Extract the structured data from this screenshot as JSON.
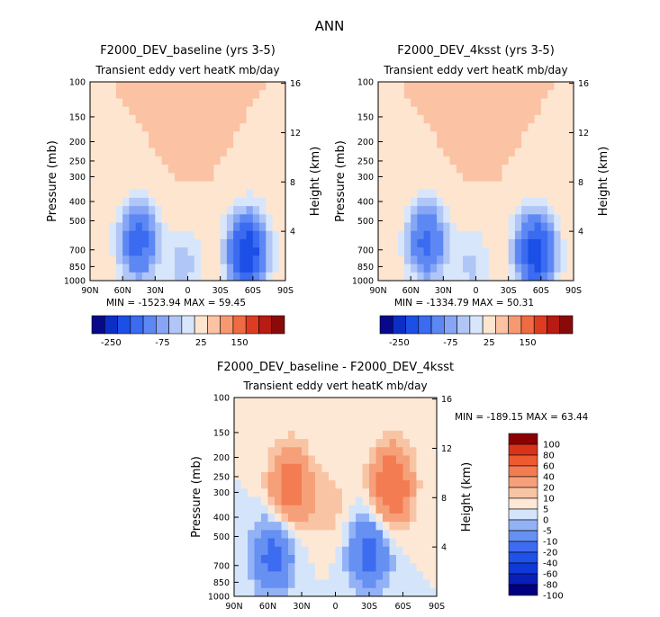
{
  "figure_title": "ANN",
  "chart_data": [
    {
      "type": "heatmap",
      "id": "baseline",
      "title": "F2000_DEV_baseline (yrs 3-5)",
      "subtitle": "Transient eddy vert heatK mb/day",
      "xlabel": "",
      "ylabel": "Pressure (mb)",
      "y2label": "Height (km)",
      "x_ticks": [
        "90N",
        "60N",
        "30N",
        "0",
        "30S",
        "60S",
        "90S"
      ],
      "x_range": [
        90,
        -90
      ],
      "y_ticks": [
        100,
        150,
        200,
        250,
        300,
        400,
        500,
        700,
        850,
        1000
      ],
      "y_range": [
        100,
        1000
      ],
      "y_scale": "log",
      "y2_ticks": [
        4,
        8,
        12,
        16
      ],
      "stats": {
        "min_label": "MIN =",
        "min": "-1523.94",
        "max_label": "MAX =",
        "max": "59.45"
      },
      "features": [
        {
          "lat": -55,
          "p": 720,
          "value": -250
        },
        {
          "lat": 45,
          "p": 640,
          "value": -180
        },
        {
          "lat": 5,
          "p": 820,
          "value": -70
        },
        {
          "lat": 20,
          "p": 700,
          "value": 15
        },
        {
          "lat": 0,
          "p": 150,
          "value": 10
        }
      ],
      "levels": [
        -400,
        -250,
        -200,
        -150,
        -100,
        -75,
        -50,
        -25,
        0,
        10,
        25,
        50,
        75,
        100,
        150,
        200,
        250
      ],
      "colorbar_labels": [
        "-250",
        "-75",
        "25",
        "150"
      ]
    },
    {
      "type": "heatmap",
      "id": "4ksst",
      "title": "F2000_DEV_4ksst (yrs 3-5)",
      "subtitle": "Transient eddy vert heatK mb/day",
      "xlabel": "",
      "ylabel": "Pressure (mb)",
      "y2label": "Height (km)",
      "x_ticks": [
        "90N",
        "60N",
        "30N",
        "0",
        "30S",
        "60S",
        "90S"
      ],
      "x_range": [
        90,
        -90
      ],
      "y_ticks": [
        100,
        150,
        200,
        250,
        300,
        400,
        500,
        700,
        850,
        1000
      ],
      "y_range": [
        100,
        1000
      ],
      "y_scale": "log",
      "y2_ticks": [
        4,
        8,
        12,
        16
      ],
      "stats": {
        "min_label": "MIN =",
        "min": "-1334.79",
        "max_label": "MAX =",
        "max": "50.31"
      },
      "features": [
        {
          "lat": -55,
          "p": 720,
          "value": -240
        },
        {
          "lat": 45,
          "p": 640,
          "value": -170
        },
        {
          "lat": 5,
          "p": 820,
          "value": -60
        },
        {
          "lat": 20,
          "p": 700,
          "value": 12
        },
        {
          "lat": 0,
          "p": 150,
          "value": 10
        }
      ],
      "levels": [
        -400,
        -250,
        -200,
        -150,
        -100,
        -75,
        -50,
        -25,
        0,
        10,
        25,
        50,
        75,
        100,
        150,
        200,
        250
      ],
      "colorbar_labels": [
        "-250",
        "-75",
        "25",
        "150"
      ]
    },
    {
      "type": "heatmap",
      "id": "difference",
      "title": "F2000_DEV_baseline - F2000_DEV_4ksst",
      "subtitle": "Transient eddy vert heatK mb/day",
      "xlabel": "",
      "ylabel": "Pressure (mb)",
      "y2label": "Height (km)",
      "x_ticks": [
        "90N",
        "60N",
        "30N",
        "0",
        "30S",
        "60S",
        "90S"
      ],
      "x_range": [
        90,
        -90
      ],
      "y_ticks": [
        100,
        150,
        200,
        250,
        300,
        400,
        500,
        700,
        850,
        1000
      ],
      "y_range": [
        100,
        1000
      ],
      "y_scale": "log",
      "y2_ticks": [
        4,
        8,
        12,
        16
      ],
      "stats": {
        "min_label": "MIN =",
        "min": "-189.15",
        "max_label": "MAX =",
        "max": "63.44"
      },
      "features": [
        {
          "lat": 40,
          "p": 280,
          "value": 30
        },
        {
          "lat": -50,
          "p": 280,
          "value": 35
        },
        {
          "lat": 55,
          "p": 620,
          "value": -25
        },
        {
          "lat": -30,
          "p": 600,
          "value": -25
        },
        {
          "lat": 5,
          "p": 350,
          "value": 8
        }
      ],
      "levels": [
        -100,
        -80,
        -60,
        -40,
        -20,
        -10,
        -5,
        0,
        5,
        10,
        20,
        40,
        60,
        80,
        100
      ],
      "colorbar_labels": [
        "100",
        "80",
        "60",
        "40",
        "20",
        "10",
        "5",
        "0",
        "-5",
        "-10",
        "-20",
        "-40",
        "-60",
        "-80",
        "-100"
      ]
    }
  ],
  "palette_12": [
    "#08088a",
    "#0b2fc4",
    "#1c4fe6",
    "#3a6bf0",
    "#5d88f3",
    "#86a6f5",
    "#b0c6f6",
    "#d8e6fb",
    "#fde5cf",
    "#fbc2a4",
    "#f89870",
    "#f06a42",
    "#dd3c22",
    "#b81a14",
    "#8a0a0a"
  ],
  "palette_15": [
    "#000080",
    "#0a1fb8",
    "#1038d8",
    "#1f52e8",
    "#3d6cf0",
    "#6690f2",
    "#93b2f5",
    "#d4e5fb",
    "#fde8d6",
    "#f9c4a4",
    "#f6a07a",
    "#f37c52",
    "#ee5a30",
    "#d8341a",
    "#8b0000"
  ]
}
